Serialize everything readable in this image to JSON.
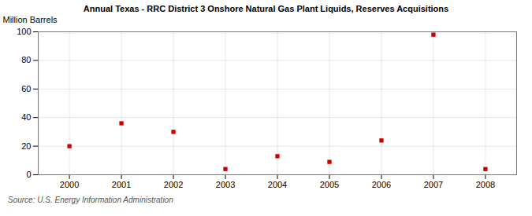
{
  "chart_data": {
    "type": "scatter",
    "title": "Annual Texas - RRC District 3 Onshore Natural Gas Plant Liquids, Reserves Acquisitions",
    "ylabel": "Million Barrels",
    "annotations": [
      "Source: U.S. Energy Information Administration"
    ],
    "x": [
      2000,
      2001,
      2002,
      2003,
      2004,
      2005,
      2006,
      2007,
      2008
    ],
    "values": [
      20,
      36,
      30,
      4,
      13,
      9,
      24,
      98,
      4
    ],
    "color": "#cc0000",
    "marker": "square",
    "xlim": [
      1999.4,
      2008.6
    ],
    "xticks": [
      2000,
      2001,
      2002,
      2003,
      2004,
      2005,
      2006,
      2007,
      2008
    ],
    "ylim": [
      0,
      100
    ],
    "yticks": [
      0,
      20,
      40,
      60,
      80,
      100
    ],
    "grid": true
  }
}
